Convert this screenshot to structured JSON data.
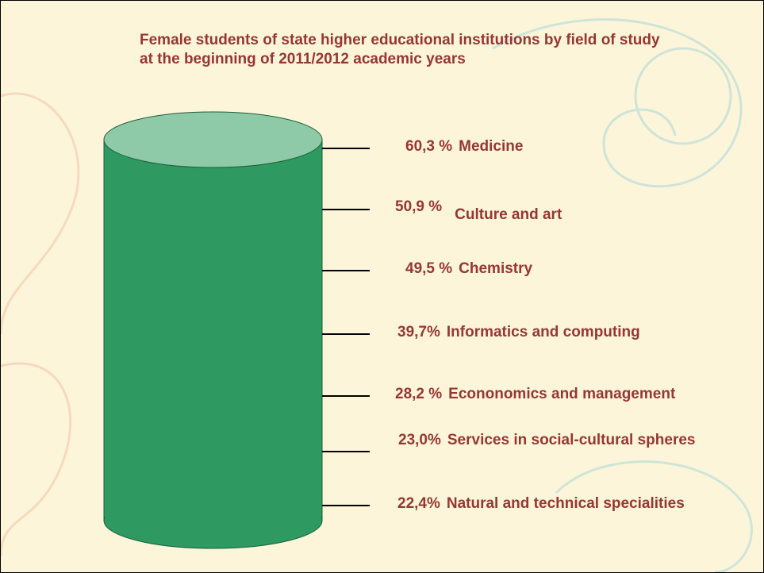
{
  "title": "Female students of state higher educational institutions by field of study at the beginning of 2011/2012 academic years",
  "items": [
    {
      "percent": "60,3 %",
      "field": "Medicine"
    },
    {
      "percent": "50,9 %",
      "field": "Culture and art"
    },
    {
      "percent": "49,5 %",
      "field": "Chemistry"
    },
    {
      "percent": "39,7%",
      "field": "Informatics and computing"
    },
    {
      "percent": "28,2 %",
      "field": "Econonomics and management"
    },
    {
      "percent": "23,0%",
      "field": "Services in social-cultural spheres"
    },
    {
      "percent": "22,4%",
      "field": "Natural and technical specialities"
    }
  ]
}
